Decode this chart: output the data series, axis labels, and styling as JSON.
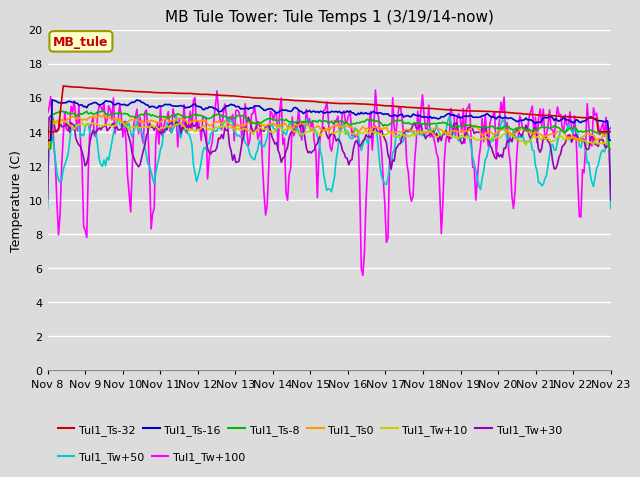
{
  "title": "MB Tule Tower: Tule Temps 1 (3/19/14-now)",
  "ylabel": "Temperature (C)",
  "ylim": [
    0,
    20
  ],
  "yticks": [
    0,
    2,
    4,
    6,
    8,
    10,
    12,
    14,
    16,
    18,
    20
  ],
  "xlim": [
    0,
    15
  ],
  "xtick_labels": [
    "Nov 8",
    "Nov 9",
    "Nov 10",
    "Nov 11",
    "Nov 12",
    "Nov 13",
    "Nov 14",
    "Nov 15",
    "Nov 16",
    "Nov 17",
    "Nov 18",
    "Nov 19",
    "Nov 20",
    "Nov 21",
    "Nov 22",
    "Nov 23"
  ],
  "plot_bg_color": "#dcdcdc",
  "fig_bg_color": "#dcdcdc",
  "grid_color": "#ffffff",
  "series_colors": {
    "Tul1_Ts-32": "#cc0000",
    "Tul1_Ts-16": "#0000cc",
    "Tul1_Ts-8": "#00bb00",
    "Tul1_Ts0": "#ff9900",
    "Tul1_Tw+10": "#cccc00",
    "Tul1_Tw+30": "#9900bb",
    "Tul1_Tw+50": "#00cccc",
    "Tul1_Tw+100": "#ff00ff"
  },
  "lw": 1.2,
  "annotation": {
    "text": "MB_tule",
    "facecolor": "#ffffcc",
    "edgecolor": "#999900",
    "textcolor": "#cc0000",
    "fontsize": 9
  },
  "title_fontsize": 11,
  "axis_fontsize": 9,
  "tick_fontsize": 8,
  "legend_fontsize": 8
}
